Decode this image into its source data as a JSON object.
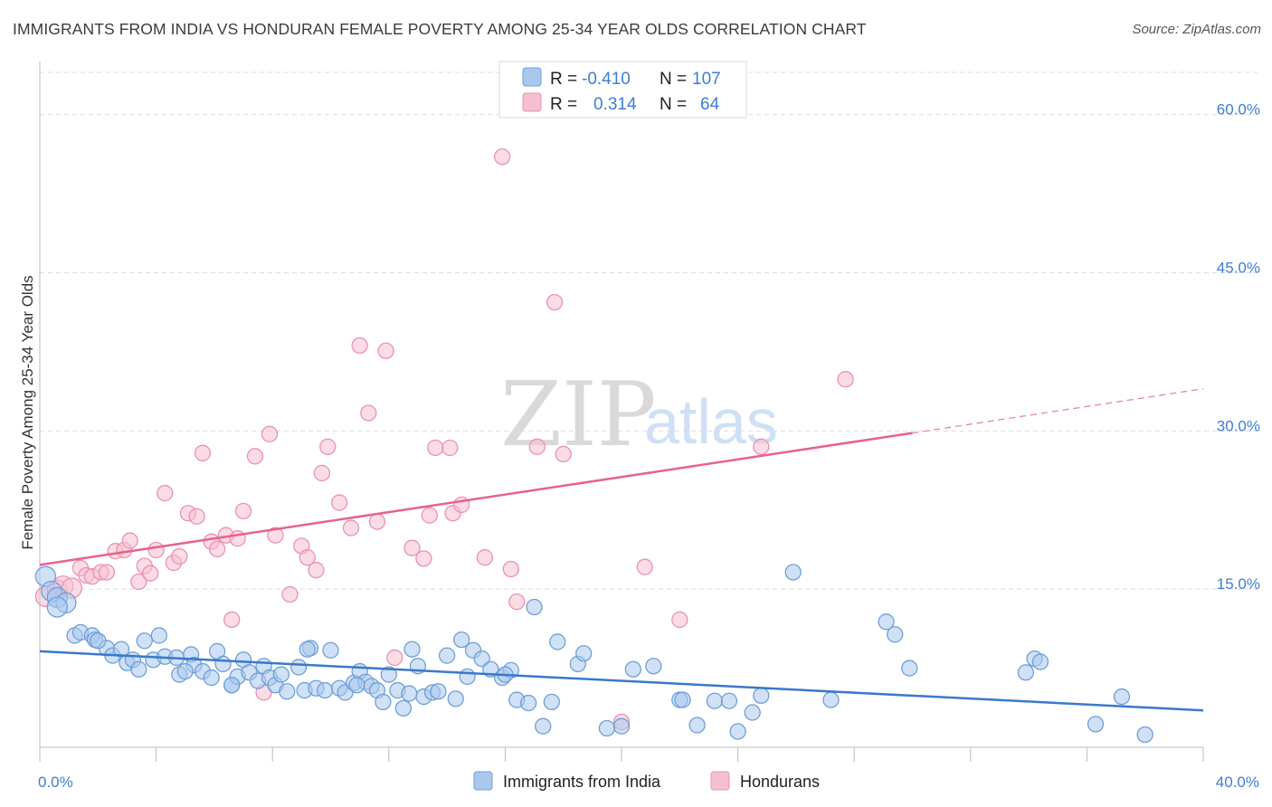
{
  "header": {
    "title": "IMMIGRANTS FROM INDIA VS HONDURAN FEMALE POVERTY AMONG 25-34 YEAR OLDS CORRELATION CHART",
    "source": "Source: ZipAtlas.com"
  },
  "watermark": {
    "zip": "ZIP",
    "atlas": "atlas"
  },
  "legend_box": {
    "rows": [
      {
        "r_label": "R =",
        "r_value": "-0.410",
        "n_label": "N =",
        "n_value": "107",
        "series": "india"
      },
      {
        "r_label": "R =",
        "r_value": "0.314",
        "n_label": "N =",
        "n_value": "64",
        "series": "honduran"
      }
    ]
  },
  "colors": {
    "india_fill": "#aac8ee",
    "india_stroke": "#6f9fd8",
    "india_line": "#3a78cc",
    "honduran_fill": "#f6bfd0",
    "honduran_stroke": "#ec92ae",
    "honduran_line": "#e8628c",
    "tick_label": "#3d7dd6",
    "grid": "#dddddd"
  },
  "chart_data": {
    "type": "scatter",
    "title": "IMMIGRANTS FROM INDIA VS HONDURAN FEMALE POVERTY AMONG 25-34 YEAR OLDS CORRELATION CHART",
    "xlabel": "",
    "ylabel": "Female Poverty Among 25-34 Year Olds",
    "xlim": [
      0,
      40
    ],
    "ylim": [
      0,
      64
    ],
    "x_tick_labels": [
      "0.0%",
      "40.0%"
    ],
    "y_ticks": [
      15,
      30,
      45,
      60
    ],
    "y_tick_labels": [
      "15.0%",
      "30.0%",
      "45.0%",
      "60.0%"
    ],
    "grid": true,
    "legend_position": "bottom-center",
    "series": [
      {
        "name": "Immigrants from India",
        "key": "india",
        "trend": {
          "x": [
            0,
            40
          ],
          "y": [
            9.1,
            3.5
          ]
        },
        "points": [
          [
            0.2,
            16.2
          ],
          [
            0.4,
            14.8
          ],
          [
            0.6,
            14.2
          ],
          [
            0.9,
            13.7
          ],
          [
            0.6,
            13.3
          ],
          [
            1.2,
            10.6
          ],
          [
            1.4,
            10.9
          ],
          [
            1.8,
            10.6
          ],
          [
            1.9,
            10.2
          ],
          [
            2.3,
            9.4
          ],
          [
            2.5,
            8.7
          ],
          [
            2.8,
            9.3
          ],
          [
            3.0,
            8.0
          ],
          [
            3.2,
            8.3
          ],
          [
            3.4,
            7.4
          ],
          [
            3.6,
            10.1
          ],
          [
            3.9,
            8.3
          ],
          [
            4.1,
            10.6
          ],
          [
            4.3,
            8.6
          ],
          [
            4.7,
            8.5
          ],
          [
            4.8,
            6.9
          ],
          [
            5.2,
            8.8
          ],
          [
            5.3,
            7.8
          ],
          [
            5.6,
            7.2
          ],
          [
            5.9,
            6.6
          ],
          [
            6.1,
            9.1
          ],
          [
            6.3,
            7.9
          ],
          [
            6.6,
            5.9
          ],
          [
            6.8,
            6.7
          ],
          [
            7.0,
            8.3
          ],
          [
            7.2,
            7.1
          ],
          [
            7.5,
            6.3
          ],
          [
            7.7,
            7.7
          ],
          [
            7.9,
            6.6
          ],
          [
            8.1,
            5.9
          ],
          [
            8.3,
            6.9
          ],
          [
            8.5,
            5.3
          ],
          [
            8.9,
            7.6
          ],
          [
            9.1,
            5.4
          ],
          [
            9.3,
            9.4
          ],
          [
            9.5,
            5.6
          ],
          [
            9.8,
            5.4
          ],
          [
            10.0,
            9.2
          ],
          [
            10.3,
            5.6
          ],
          [
            10.5,
            5.2
          ],
          [
            10.8,
            6.1
          ],
          [
            11.0,
            7.2
          ],
          [
            11.2,
            6.2
          ],
          [
            11.4,
            5.8
          ],
          [
            11.6,
            5.4
          ],
          [
            11.8,
            4.3
          ],
          [
            12.0,
            6.9
          ],
          [
            12.3,
            5.4
          ],
          [
            12.5,
            3.7
          ],
          [
            12.8,
            9.3
          ],
          [
            13.0,
            7.7
          ],
          [
            13.2,
            4.8
          ],
          [
            13.5,
            5.2
          ],
          [
            13.7,
            5.3
          ],
          [
            14.0,
            8.7
          ],
          [
            14.3,
            4.6
          ],
          [
            14.5,
            10.2
          ],
          [
            14.7,
            6.7
          ],
          [
            14.9,
            9.2
          ],
          [
            15.2,
            8.4
          ],
          [
            15.5,
            7.4
          ],
          [
            15.9,
            6.6
          ],
          [
            16.2,
            7.3
          ],
          [
            16.4,
            4.5
          ],
          [
            16.8,
            4.2
          ],
          [
            17.0,
            13.3
          ],
          [
            17.3,
            2.0
          ],
          [
            17.6,
            4.3
          ],
          [
            17.8,
            10.0
          ],
          [
            18.5,
            7.9
          ],
          [
            18.7,
            8.9
          ],
          [
            19.5,
            1.8
          ],
          [
            20.0,
            2.0
          ],
          [
            20.4,
            7.4
          ],
          [
            21.1,
            7.7
          ],
          [
            22.0,
            4.5
          ],
          [
            22.1,
            4.5
          ],
          [
            22.6,
            2.1
          ],
          [
            23.2,
            4.4
          ],
          [
            23.7,
            4.4
          ],
          [
            24.0,
            1.5
          ],
          [
            24.5,
            3.3
          ],
          [
            24.8,
            4.9
          ],
          [
            25.9,
            16.6
          ],
          [
            27.2,
            4.5
          ],
          [
            29.1,
            11.9
          ],
          [
            29.4,
            10.7
          ],
          [
            29.9,
            7.5
          ],
          [
            33.9,
            7.1
          ],
          [
            34.2,
            8.4
          ],
          [
            34.4,
            8.1
          ],
          [
            36.3,
            2.2
          ],
          [
            37.2,
            4.8
          ],
          [
            38.0,
            1.2
          ],
          [
            2.0,
            10.1
          ],
          [
            6.6,
            5.9
          ],
          [
            10.9,
            5.9
          ],
          [
            12.7,
            5.1
          ],
          [
            16.0,
            6.9
          ],
          [
            9.2,
            9.3
          ],
          [
            5.0,
            7.2
          ]
        ]
      },
      {
        "name": "Hondurans",
        "key": "honduran",
        "trend": {
          "x": [
            0,
            30.0
          ],
          "y": [
            17.3,
            29.8
          ]
        },
        "trend_dashed": {
          "x": [
            30.0,
            40
          ],
          "y": [
            29.8,
            34.0
          ]
        },
        "points": [
          [
            0.2,
            14.3
          ],
          [
            0.6,
            14.9
          ],
          [
            0.8,
            15.3
          ],
          [
            1.1,
            15.1
          ],
          [
            1.4,
            17.0
          ],
          [
            1.6,
            16.3
          ],
          [
            1.8,
            16.2
          ],
          [
            2.1,
            16.6
          ],
          [
            2.3,
            16.6
          ],
          [
            2.6,
            18.6
          ],
          [
            2.9,
            18.7
          ],
          [
            3.1,
            19.6
          ],
          [
            3.4,
            15.7
          ],
          [
            3.6,
            17.2
          ],
          [
            3.8,
            16.5
          ],
          [
            4.0,
            18.7
          ],
          [
            4.3,
            24.1
          ],
          [
            4.6,
            17.5
          ],
          [
            4.8,
            18.1
          ],
          [
            5.1,
            22.2
          ],
          [
            5.4,
            21.9
          ],
          [
            5.6,
            27.9
          ],
          [
            5.9,
            19.5
          ],
          [
            6.1,
            18.8
          ],
          [
            6.4,
            20.1
          ],
          [
            6.6,
            12.1
          ],
          [
            6.8,
            19.8
          ],
          [
            7.0,
            22.4
          ],
          [
            7.4,
            27.6
          ],
          [
            7.7,
            5.2
          ],
          [
            7.9,
            29.7
          ],
          [
            8.1,
            20.1
          ],
          [
            8.6,
            14.5
          ],
          [
            9.0,
            19.1
          ],
          [
            9.2,
            18.0
          ],
          [
            9.5,
            16.8
          ],
          [
            9.7,
            26.0
          ],
          [
            9.9,
            28.5
          ],
          [
            10.3,
            23.2
          ],
          [
            10.7,
            20.8
          ],
          [
            11.0,
            38.1
          ],
          [
            11.3,
            31.7
          ],
          [
            11.6,
            21.4
          ],
          [
            11.9,
            37.6
          ],
          [
            12.2,
            8.5
          ],
          [
            12.8,
            18.9
          ],
          [
            13.2,
            17.9
          ],
          [
            13.4,
            22.0
          ],
          [
            13.6,
            28.4
          ],
          [
            14.1,
            28.4
          ],
          [
            14.2,
            22.2
          ],
          [
            14.5,
            23.0
          ],
          [
            15.3,
            18.0
          ],
          [
            15.9,
            56.0
          ],
          [
            16.2,
            16.9
          ],
          [
            16.4,
            13.8
          ],
          [
            17.1,
            28.5
          ],
          [
            17.7,
            42.2
          ],
          [
            18.0,
            27.8
          ],
          [
            20.0,
            2.4
          ],
          [
            20.8,
            17.1
          ],
          [
            22.0,
            12.1
          ],
          [
            24.8,
            28.5
          ],
          [
            27.7,
            34.9
          ]
        ]
      }
    ]
  },
  "bottom_legend": {
    "items": [
      {
        "label": "Immigrants from India",
        "series": "india"
      },
      {
        "label": "Hondurans",
        "series": "honduran"
      }
    ]
  }
}
